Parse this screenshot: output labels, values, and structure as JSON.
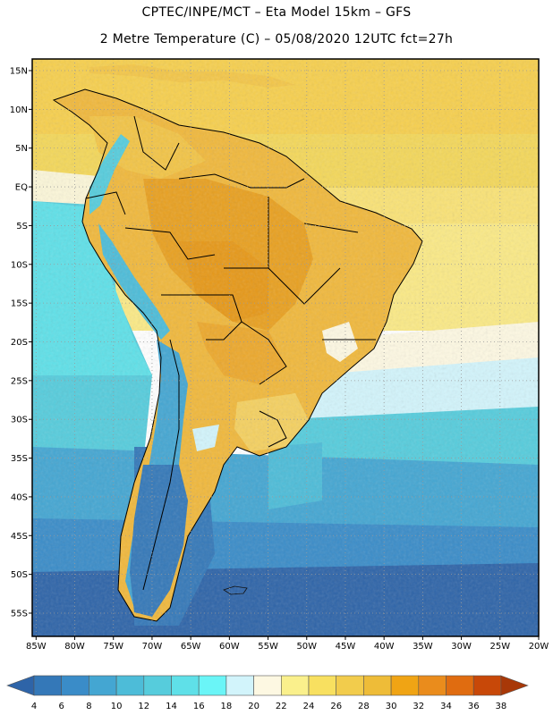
{
  "header": {
    "title_line1": "CPTEC/INPE/MCT –  Eta Model 15km – GFS",
    "title_line2": "2 Metre Temperature (C) – 05/08/2020 12UTC fct=27h"
  },
  "map": {
    "variable": "2 Metre Temperature",
    "units": "C",
    "lat_ticks": [
      "15N",
      "10N",
      "5N",
      "EQ",
      "5S",
      "10S",
      "15S",
      "20S",
      "25S",
      "30S",
      "35S",
      "40S",
      "45S",
      "50S",
      "55S"
    ],
    "lon_ticks": [
      "85W",
      "80W",
      "75W",
      "70W",
      "65W",
      "60W",
      "55W",
      "50W",
      "45W",
      "40W",
      "35W",
      "30W",
      "25W",
      "20W"
    ],
    "lat_values": [
      15,
      10,
      5,
      0,
      -5,
      -10,
      -15,
      -20,
      -25,
      -30,
      -35,
      -40,
      -45,
      -50,
      -55
    ],
    "lon_values": [
      -85,
      -80,
      -75,
      -70,
      -65,
      -60,
      -55,
      -50,
      -45,
      -40,
      -35,
      -30,
      -25,
      -20
    ],
    "lat_range": [
      -58,
      16.5
    ],
    "lon_range": [
      -85.5,
      -20
    ]
  },
  "colorbar": {
    "labels": [
      "4",
      "6",
      "8",
      "10",
      "12",
      "14",
      "16",
      "18",
      "20",
      "22",
      "24",
      "26",
      "28",
      "30",
      "32",
      "34",
      "36",
      "38"
    ],
    "colors": [
      "#2e64a8",
      "#3478b8",
      "#3a8cc8",
      "#44a6d2",
      "#4dbcd8",
      "#56ccdc",
      "#5fe0e8",
      "#6af5f7",
      "#d2f4fb",
      "#fdf8e2",
      "#faf08c",
      "#f8e060",
      "#f2cc4c",
      "#eebc38",
      "#f0a414",
      "#ea8c1c",
      "#e06c10",
      "#c84808",
      "#a83808"
    ]
  }
}
